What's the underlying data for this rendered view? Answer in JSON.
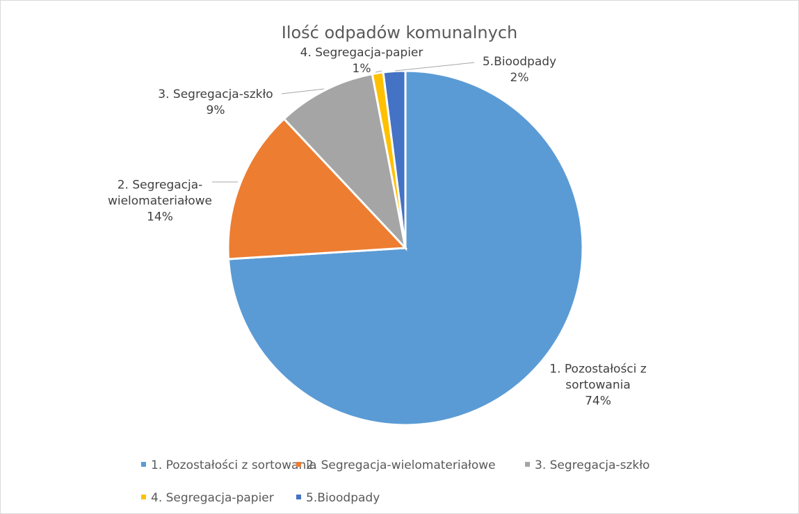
{
  "chart_data": {
    "type": "pie",
    "title": "Ilość odpadów komunalnych",
    "categories": [
      "1. Pozostałości z sortowania",
      "2. Segregacja-wielomateriałowe",
      "3. Segregacja-szkło",
      "4. Segregacja-papier",
      "5.Bioodpady"
    ],
    "values": [
      74,
      14,
      9,
      1,
      2
    ],
    "value_labels": [
      "74%",
      "14%",
      "9%",
      "1%",
      "2%"
    ],
    "colors": [
      "#5b9bd5",
      "#ed7d31",
      "#a5a5a5",
      "#ffc000",
      "#4472c4"
    ],
    "legend": "bottom"
  }
}
